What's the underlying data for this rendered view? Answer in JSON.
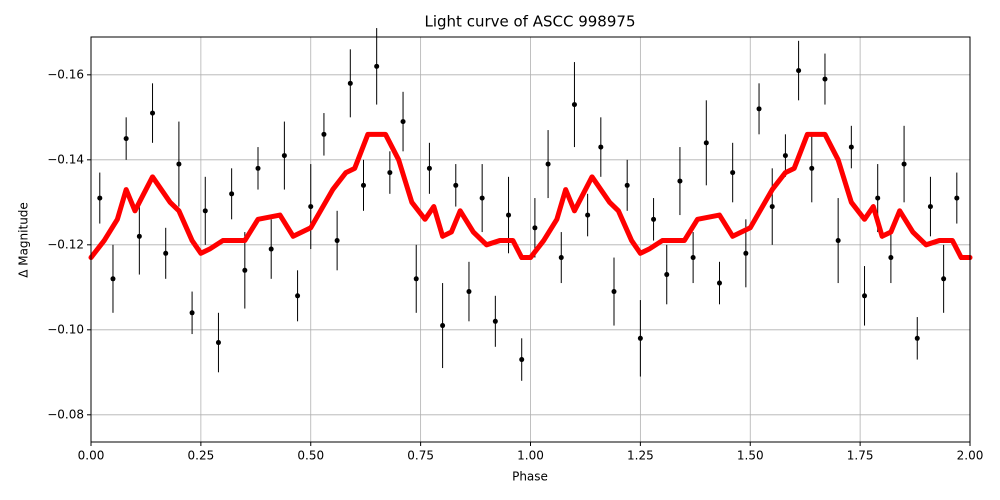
{
  "chart_data": {
    "type": "scatter",
    "title": "Light curve of ASCC 998975",
    "x_label": "Phase",
    "y_label": "Δ Magnitude",
    "xlim": [
      0,
      2
    ],
    "ylim": [
      -0.0736,
      -0.1689
    ],
    "xticks": [
      {
        "value": 0,
        "label": "0.00"
      },
      {
        "value": 0.25,
        "label": "0.25"
      },
      {
        "value": 0.5,
        "label": "0.50"
      },
      {
        "value": 0.75,
        "label": "0.75"
      },
      {
        "value": 1,
        "label": "1.00"
      },
      {
        "value": 1.25,
        "label": "1.25"
      },
      {
        "value": 1.5,
        "label": "1.50"
      },
      {
        "value": 1.75,
        "label": "1.75"
      },
      {
        "value": 2,
        "label": "2.00"
      }
    ],
    "yticks": [
      {
        "value": -0.16,
        "label": "−0.16"
      },
      {
        "value": -0.14,
        "label": "−0.14"
      },
      {
        "value": -0.12,
        "label": "−0.12"
      },
      {
        "value": -0.1,
        "label": "−0.10"
      },
      {
        "value": -0.08,
        "label": "−0.08"
      }
    ],
    "grid": true,
    "points": {
      "color": "#000000",
      "x": [
        0.02,
        0.05,
        0.08,
        0.11,
        0.14,
        0.17,
        0.2,
        0.23,
        0.26,
        0.29,
        0.32,
        0.35,
        0.38,
        0.41,
        0.44,
        0.47,
        0.5,
        0.53,
        0.56,
        0.59,
        0.62,
        0.65,
        0.68,
        0.71,
        0.74,
        0.77,
        0.8,
        0.83,
        0.86,
        0.89,
        0.92,
        0.95,
        0.98,
        1.01,
        1.04,
        1.07,
        1.1,
        1.13,
        1.16,
        1.19,
        1.22,
        1.25,
        1.28,
        1.31,
        1.34,
        1.37,
        1.4,
        1.43,
        1.46,
        1.49,
        1.52,
        1.55,
        1.58,
        1.61,
        1.64,
        1.67,
        1.7,
        1.73,
        1.76,
        1.79,
        1.82,
        1.85,
        1.88,
        1.91,
        1.94,
        1.97
      ],
      "y": [
        -0.131,
        -0.112,
        -0.145,
        -0.122,
        -0.151,
        -0.118,
        -0.139,
        -0.104,
        -0.128,
        -0.097,
        -0.132,
        -0.114,
        -0.138,
        -0.119,
        -0.141,
        -0.108,
        -0.129,
        -0.146,
        -0.121,
        -0.158,
        -0.134,
        -0.162,
        -0.137,
        -0.149,
        -0.112,
        -0.138,
        -0.101,
        -0.134,
        -0.109,
        -0.131,
        -0.102,
        -0.127,
        -0.093,
        -0.124,
        -0.139,
        -0.117,
        -0.153,
        -0.127,
        -0.143,
        -0.109,
        -0.134,
        -0.098,
        -0.126,
        -0.113,
        -0.135,
        -0.117,
        -0.144,
        -0.111,
        -0.137,
        -0.118,
        -0.152,
        -0.129,
        -0.141,
        -0.161,
        -0.138,
        -0.159,
        -0.121,
        -0.143,
        -0.108,
        -0.131,
        -0.117,
        -0.139,
        -0.098,
        -0.129,
        -0.112,
        -0.131
      ],
      "yerr": [
        0.006,
        0.008,
        0.005,
        0.009,
        0.007,
        0.006,
        0.01,
        0.005,
        0.008,
        0.007,
        0.006,
        0.009,
        0.005,
        0.007,
        0.008,
        0.006,
        0.01,
        0.005,
        0.007,
        0.008,
        0.006,
        0.009,
        0.005,
        0.007,
        0.008,
        0.006,
        0.01,
        0.005,
        0.007,
        0.008,
        0.006,
        0.009,
        0.005,
        0.007,
        0.008,
        0.006,
        0.01,
        0.005,
        0.007,
        0.008,
        0.006,
        0.009,
        0.005,
        0.007,
        0.008,
        0.006,
        0.01,
        0.005,
        0.007,
        0.008,
        0.006,
        0.009,
        0.005,
        0.007,
        0.008,
        0.006,
        0.01,
        0.005,
        0.007,
        0.008,
        0.006,
        0.009,
        0.005,
        0.007,
        0.008,
        0.006
      ]
    },
    "line": {
      "color": "#ff0000",
      "x": [
        0,
        0.03,
        0.06,
        0.08,
        0.1,
        0.14,
        0.18,
        0.2,
        0.23,
        0.25,
        0.27,
        0.3,
        0.35,
        0.38,
        0.43,
        0.46,
        0.5,
        0.55,
        0.58,
        0.6,
        0.63,
        0.67,
        0.7,
        0.73,
        0.76,
        0.78,
        0.8,
        0.82,
        0.84,
        0.87,
        0.9,
        0.93,
        0.96,
        0.98,
        1,
        1.03,
        1.06,
        1.08,
        1.1,
        1.14,
        1.18,
        1.2,
        1.23,
        1.25,
        1.27,
        1.3,
        1.35,
        1.38,
        1.43,
        1.46,
        1.5,
        1.55,
        1.58,
        1.6,
        1.63,
        1.67,
        1.7,
        1.73,
        1.76,
        1.78,
        1.8,
        1.82,
        1.84,
        1.87,
        1.9,
        1.93,
        1.96,
        1.98,
        2
      ],
      "y": [
        -0.117,
        -0.121,
        -0.126,
        -0.133,
        -0.128,
        -0.136,
        -0.13,
        -0.128,
        -0.121,
        -0.118,
        -0.119,
        -0.121,
        -0.121,
        -0.126,
        -0.127,
        -0.122,
        -0.124,
        -0.133,
        -0.137,
        -0.138,
        -0.146,
        -0.146,
        -0.14,
        -0.13,
        -0.126,
        -0.129,
        -0.122,
        -0.123,
        -0.128,
        -0.123,
        -0.12,
        -0.121,
        -0.121,
        -0.117,
        -0.117,
        -0.121,
        -0.126,
        -0.133,
        -0.128,
        -0.136,
        -0.13,
        -0.128,
        -0.121,
        -0.118,
        -0.119,
        -0.121,
        -0.121,
        -0.126,
        -0.127,
        -0.122,
        -0.124,
        -0.133,
        -0.137,
        -0.138,
        -0.146,
        -0.146,
        -0.14,
        -0.13,
        -0.126,
        -0.129,
        -0.122,
        -0.123,
        -0.128,
        -0.123,
        -0.12,
        -0.121,
        -0.121,
        -0.117,
        -0.117
      ]
    }
  }
}
